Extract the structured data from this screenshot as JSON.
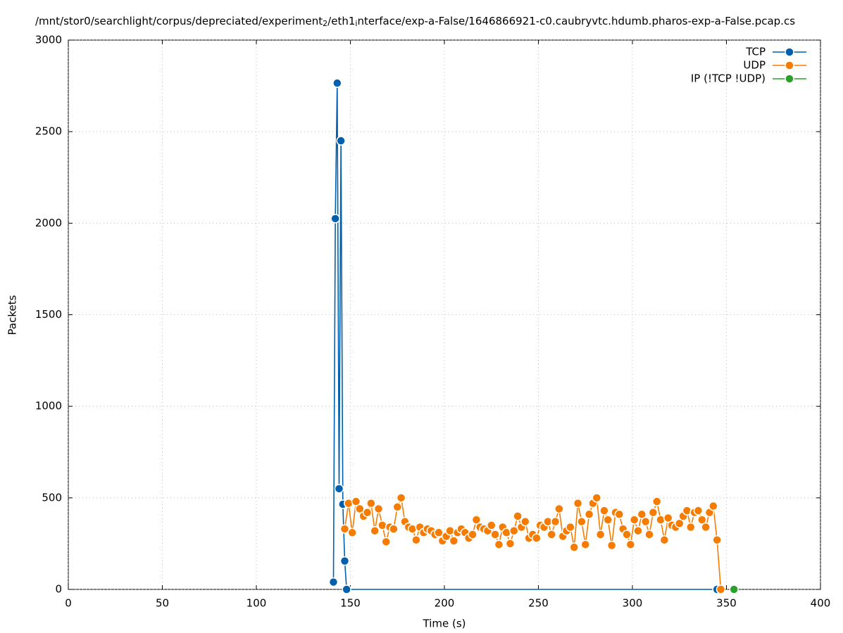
{
  "chart_data": {
    "type": "line",
    "title": [
      "/mnt/stor0/searchlight/corpus/depreciated/experiment",
      "2",
      "/eth1",
      "i",
      "nterface/exp-a-False/1646866921-c0.caubryvtc.hdumb.pharos-exp-a-False.pcap.cs"
    ],
    "x_label": "Time (s)",
    "y_label": "Packets",
    "xlim": [
      0,
      400
    ],
    "xticks": [
      0,
      50,
      100,
      150,
      200,
      250,
      300,
      350,
      400
    ],
    "ylim": [
      0,
      3000
    ],
    "yticks": [
      0,
      500,
      1000,
      1500,
      2000,
      2500,
      3000
    ],
    "grid": true,
    "legend": "top-right",
    "series": [
      {
        "name": "TCP",
        "color": "#0060ad",
        "x": [
          141,
          142,
          143,
          144,
          145,
          146,
          147,
          148,
          345
        ],
        "values": [
          40,
          2025,
          2765,
          550,
          2450,
          465,
          155,
          0,
          0
        ]
      },
      {
        "name": "UDP",
        "color": "#f57c00",
        "x": [
          147,
          149,
          151,
          153,
          155,
          157,
          159,
          161,
          163,
          165,
          167,
          169,
          171,
          173,
          175,
          177,
          179,
          181,
          183,
          185,
          187,
          189,
          191,
          193,
          195,
          197,
          199,
          201,
          203,
          205,
          207,
          209,
          211,
          213,
          215,
          217,
          219,
          221,
          223,
          225,
          227,
          229,
          231,
          233,
          235,
          237,
          239,
          241,
          243,
          245,
          247,
          249,
          251,
          253,
          255,
          257,
          259,
          261,
          263,
          265,
          267,
          269,
          271,
          273,
          275,
          277,
          279,
          281,
          283,
          285,
          287,
          289,
          291,
          293,
          295,
          297,
          299,
          301,
          303,
          305,
          307,
          309,
          311,
          313,
          315,
          317,
          319,
          321,
          323,
          325,
          327,
          329,
          331,
          333,
          335,
          337,
          339,
          341,
          343,
          345,
          347
        ],
        "values": [
          330,
          470,
          310,
          480,
          440,
          400,
          420,
          470,
          320,
          440,
          350,
          260,
          340,
          330,
          450,
          500,
          370,
          340,
          330,
          270,
          340,
          310,
          330,
          320,
          300,
          310,
          265,
          290,
          320,
          265,
          310,
          330,
          310,
          280,
          300,
          380,
          340,
          330,
          320,
          350,
          300,
          245,
          340,
          310,
          250,
          320,
          400,
          340,
          370,
          280,
          300,
          280,
          350,
          340,
          370,
          300,
          370,
          440,
          290,
          320,
          340,
          230,
          470,
          370,
          245,
          410,
          470,
          500,
          300,
          430,
          380,
          240,
          420,
          410,
          330,
          300,
          245,
          380,
          320,
          410,
          370,
          300,
          420,
          480,
          380,
          270,
          390,
          350,
          340,
          360,
          400,
          430,
          340,
          420,
          430,
          380,
          340,
          420,
          455,
          270,
          0
        ]
      },
      {
        "name": "IP (!TCP  !UDP)",
        "color": "#2ca02c",
        "x": [
          354
        ],
        "values": [
          0
        ]
      }
    ]
  }
}
